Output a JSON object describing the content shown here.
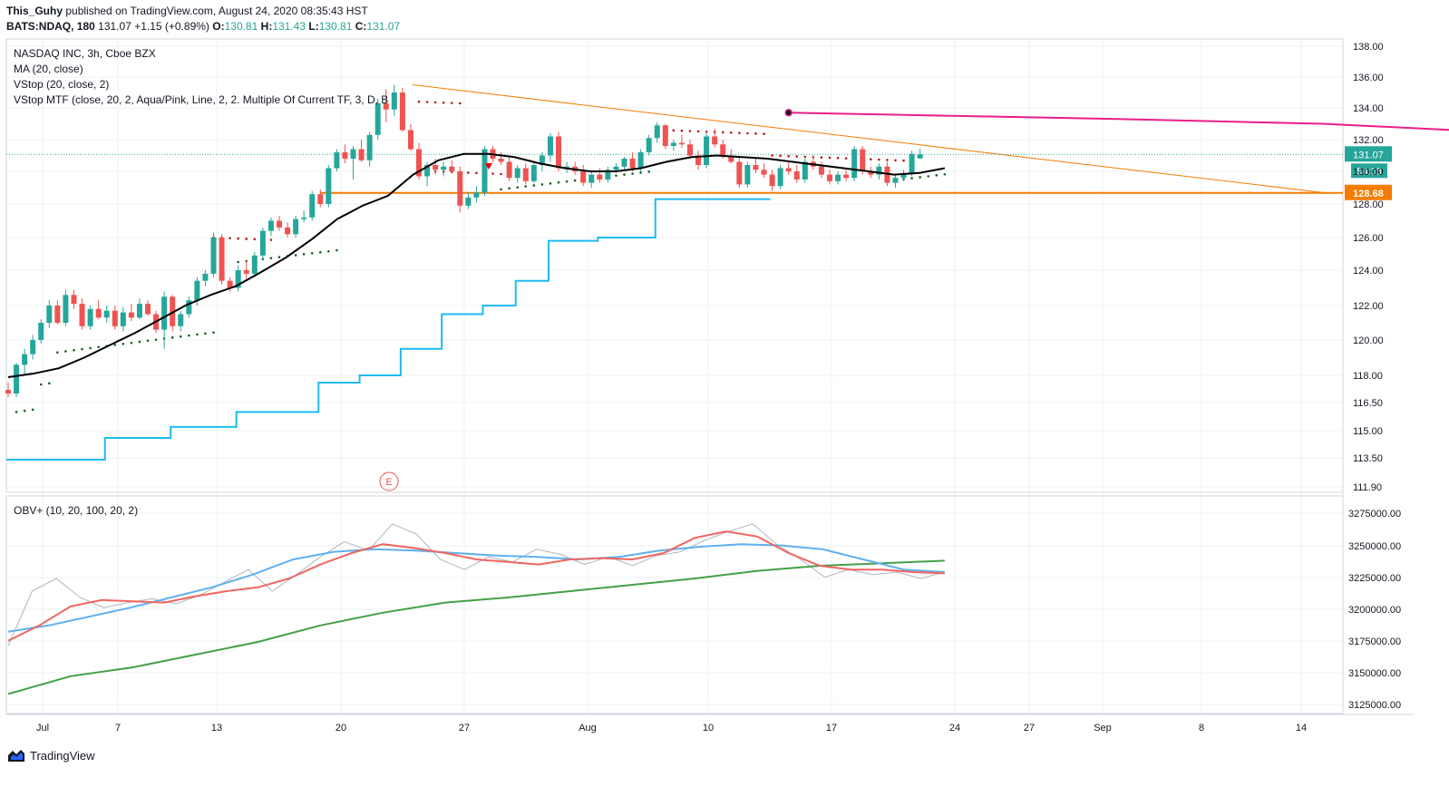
{
  "header": {
    "author": "This_Guhy",
    "published": "published on TradingView.com, August 24, 2020 08:35:43 HST",
    "symbol": "BATS:NDAQ, 180",
    "last": "131.07",
    "change": "+1.15 (+0.89%)",
    "o_label": "O:",
    "o": "130.81",
    "h_label": "H:",
    "h": "131.43",
    "l_label": "L:",
    "l": "130.81",
    "c_label": "C:",
    "c": "131.07"
  },
  "legend": {
    "title": "NASDAQ INC, 3h, Cboe BZX",
    "ma": "MA (20, close)",
    "vstop": "VStop (20, close, 2)",
    "vstop_mtf": "VStop MTF (close, 20, 2, Aqua/Pink, Line, 2, 2. Multiple Of Current TF, 3, D, B",
    "obv": "OBV+ (10, 20, 100, 20, 2)"
  },
  "footer": {
    "brand": "TradingView",
    "logo_icon": "tradingview-logo-icon"
  },
  "colors": {
    "up": "#26a69a",
    "down": "#ef5350",
    "ma": "#000000",
    "vstop_aqua": "#1ebbf0",
    "vstop_pink": "#e91e8c",
    "orange": "#f57c00",
    "obv": "#b2b5be",
    "obv_fast": "#f06560",
    "obv_mid": "#60b0f0",
    "obv_slow": "#43a047",
    "grid": "#eef0f3"
  },
  "chart_data": {
    "type": "candlestick",
    "price_ticks": [
      "138.00",
      "136.00",
      "134.00",
      "132.00",
      "130.00",
      "128.00",
      "126.00",
      "124.00",
      "122.00",
      "120.00",
      "118.00",
      "116.50",
      "115.00",
      "113.50",
      "111.90"
    ],
    "x_ticks": [
      "Jul",
      "7",
      "13",
      "20",
      "27",
      "Aug",
      "10",
      "17",
      "24",
      "27",
      "Sep",
      "8",
      "14"
    ],
    "obv_ticks": [
      "3275000.00",
      "3250000.00",
      "3225000.00",
      "3200000.00",
      "3175000.00",
      "3150000.00",
      "3125000.00"
    ],
    "price_badges": [
      {
        "value": "131.07",
        "sub": "54:18",
        "color": "#26a69a"
      },
      {
        "value": "128.68",
        "color": "#f57c00"
      }
    ],
    "horizontal_line": 128.68,
    "trend_line": {
      "from": [
        24,
        135.5
      ],
      "to": [
        170,
        128.68
      ]
    },
    "earnings_marker": "E",
    "candles": [
      [
        117.2,
        117.6,
        116.8,
        117.0
      ],
      [
        117.0,
        118.7,
        116.8,
        118.6
      ],
      [
        118.6,
        119.5,
        118.0,
        119.2
      ],
      [
        119.2,
        120.3,
        118.9,
        120.0
      ],
      [
        120.0,
        121.2,
        119.8,
        121.0
      ],
      [
        121.0,
        122.3,
        120.7,
        122.0
      ],
      [
        122.0,
        122.3,
        120.9,
        121.0
      ],
      [
        121.0,
        122.9,
        120.8,
        122.6
      ],
      [
        122.6,
        122.9,
        121.8,
        122.1
      ],
      [
        122.1,
        122.4,
        120.6,
        120.8
      ],
      [
        120.8,
        122.0,
        120.6,
        121.8
      ],
      [
        121.8,
        122.3,
        121.2,
        121.3
      ],
      [
        121.3,
        122.0,
        121.0,
        121.7
      ],
      [
        121.7,
        122.0,
        120.6,
        120.8
      ],
      [
        120.8,
        121.9,
        120.5,
        121.6
      ],
      [
        121.6,
        122.1,
        121.1,
        121.3
      ],
      [
        121.3,
        122.4,
        121.2,
        122.1
      ],
      [
        122.1,
        122.3,
        121.4,
        121.5
      ],
      [
        121.5,
        121.7,
        120.4,
        120.6
      ],
      [
        120.6,
        122.8,
        119.5,
        122.5
      ],
      [
        122.5,
        122.6,
        120.5,
        120.8
      ],
      [
        120.8,
        121.7,
        120.5,
        121.5
      ],
      [
        121.5,
        122.5,
        121.3,
        122.3
      ],
      [
        122.3,
        123.6,
        122.0,
        123.4
      ],
      [
        123.4,
        124.0,
        123.1,
        123.8
      ],
      [
        123.8,
        126.3,
        123.6,
        126.0
      ],
      [
        126.0,
        126.2,
        123.2,
        123.4
      ],
      [
        123.4,
        123.6,
        122.8,
        123.0
      ],
      [
        123.0,
        124.3,
        122.8,
        124.0
      ],
      [
        124.0,
        124.6,
        123.5,
        123.8
      ],
      [
        123.8,
        125.1,
        123.6,
        124.9
      ],
      [
        124.9,
        126.6,
        124.6,
        126.4
      ],
      [
        126.4,
        127.2,
        126.1,
        127.0
      ],
      [
        127.0,
        127.3,
        126.4,
        126.6
      ],
      [
        126.6,
        126.9,
        126.0,
        126.2
      ],
      [
        126.2,
        127.3,
        126.0,
        127.1
      ],
      [
        127.1,
        127.6,
        126.9,
        127.2
      ],
      [
        127.2,
        128.8,
        127.0,
        128.6
      ],
      [
        128.6,
        128.9,
        127.8,
        128.0
      ],
      [
        128.0,
        130.4,
        127.8,
        130.2
      ],
      [
        130.2,
        131.4,
        130.0,
        131.2
      ],
      [
        131.2,
        131.7,
        130.5,
        130.8
      ],
      [
        130.8,
        131.6,
        129.5,
        131.4
      ],
      [
        131.4,
        132.0,
        130.6,
        130.7
      ],
      [
        130.7,
        132.5,
        130.3,
        132.3
      ],
      [
        132.3,
        134.6,
        132.0,
        134.3
      ],
      [
        134.3,
        135.2,
        133.1,
        133.9
      ],
      [
        133.9,
        135.5,
        133.5,
        135.0
      ],
      [
        135.0,
        135.3,
        132.5,
        132.6
      ],
      [
        132.6,
        133.0,
        131.3,
        131.4
      ],
      [
        131.4,
        131.8,
        129.5,
        129.7
      ],
      [
        129.7,
        130.6,
        129.1,
        130.4
      ],
      [
        130.4,
        130.8,
        129.8,
        130.1
      ],
      [
        130.1,
        130.6,
        129.7,
        130.3
      ],
      [
        130.3,
        130.7,
        129.9,
        130.0
      ],
      [
        130.0,
        130.3,
        127.5,
        127.9
      ],
      [
        127.9,
        128.7,
        127.7,
        128.4
      ],
      [
        128.4,
        129.1,
        128.1,
        128.7
      ],
      [
        128.7,
        131.6,
        128.5,
        131.4
      ],
      [
        131.4,
        131.6,
        130.6,
        130.8
      ],
      [
        130.8,
        131.2,
        130.4,
        130.6
      ],
      [
        130.6,
        130.9,
        129.4,
        129.6
      ],
      [
        129.6,
        130.4,
        129.3,
        130.2
      ],
      [
        130.2,
        130.5,
        129.2,
        129.4
      ],
      [
        129.4,
        130.6,
        129.3,
        130.4
      ],
      [
        130.4,
        131.2,
        130.0,
        131.0
      ],
      [
        131.0,
        132.4,
        130.6,
        132.2
      ],
      [
        132.2,
        132.5,
        130.0,
        130.2
      ],
      [
        130.2,
        130.6,
        129.9,
        130.3
      ],
      [
        130.3,
        130.6,
        129.8,
        130.0
      ],
      [
        130.0,
        130.4,
        129.1,
        129.3
      ],
      [
        129.3,
        130.0,
        129.0,
        129.8
      ],
      [
        129.8,
        130.2,
        129.3,
        129.5
      ],
      [
        129.5,
        130.3,
        129.3,
        130.1
      ],
      [
        130.1,
        130.5,
        129.9,
        130.3
      ],
      [
        130.3,
        130.9,
        130.1,
        130.8
      ],
      [
        130.8,
        131.2,
        130.0,
        130.2
      ],
      [
        130.2,
        131.4,
        130.0,
        131.2
      ],
      [
        131.2,
        132.3,
        131.0,
        132.1
      ],
      [
        132.1,
        133.1,
        131.8,
        132.9
      ],
      [
        132.9,
        133.0,
        131.4,
        131.6
      ],
      [
        131.6,
        132.0,
        131.3,
        131.8
      ],
      [
        131.8,
        132.3,
        131.5,
        131.7
      ],
      [
        131.7,
        132.0,
        130.8,
        131.0
      ],
      [
        131.0,
        131.3,
        130.1,
        130.4
      ],
      [
        130.4,
        132.4,
        130.2,
        132.2
      ],
      [
        132.2,
        132.7,
        131.5,
        131.7
      ],
      [
        131.7,
        132.0,
        130.8,
        131.0
      ],
      [
        131.0,
        131.4,
        130.5,
        130.6
      ],
      [
        130.6,
        130.9,
        129.0,
        129.2
      ],
      [
        129.2,
        130.6,
        129.0,
        130.4
      ],
      [
        130.4,
        130.8,
        129.9,
        130.1
      ],
      [
        130.1,
        130.5,
        129.6,
        129.8
      ],
      [
        129.8,
        130.1,
        128.8,
        129.1
      ],
      [
        129.1,
        130.4,
        128.9,
        130.2
      ],
      [
        130.2,
        130.6,
        129.8,
        130.0
      ],
      [
        130.0,
        130.4,
        129.3,
        129.5
      ],
      [
        129.5,
        130.8,
        129.3,
        130.6
      ],
      [
        130.6,
        131.0,
        130.1,
        130.3
      ],
      [
        130.3,
        130.6,
        129.6,
        129.8
      ],
      [
        129.8,
        130.1,
        129.2,
        129.4
      ],
      [
        129.4,
        130.0,
        129.2,
        129.8
      ],
      [
        129.8,
        130.1,
        129.4,
        129.6
      ],
      [
        129.6,
        131.6,
        129.4,
        131.4
      ],
      [
        131.4,
        131.6,
        129.8,
        130.0
      ],
      [
        130.0,
        130.3,
        129.6,
        129.8
      ],
      [
        129.8,
        130.5,
        129.5,
        130.3
      ],
      [
        130.3,
        130.6,
        129.1,
        129.3
      ],
      [
        129.3,
        129.8,
        129.0,
        129.6
      ],
      [
        129.6,
        130.1,
        129.4,
        129.9
      ],
      [
        129.9,
        131.3,
        129.7,
        131.1
      ],
      [
        130.81,
        131.43,
        130.81,
        131.07
      ]
    ],
    "ma_line": [
      [
        0,
        117.9
      ],
      [
        5,
        118.1
      ],
      [
        10,
        118.4
      ],
      [
        15,
        119.0
      ],
      [
        20,
        119.7
      ],
      [
        25,
        120.4
      ],
      [
        30,
        121.2
      ],
      [
        35,
        122.0
      ],
      [
        40,
        122.6
      ],
      [
        45,
        123.1
      ],
      [
        50,
        123.9
      ],
      [
        55,
        124.8
      ],
      [
        60,
        125.9
      ],
      [
        65,
        127.1
      ],
      [
        70,
        127.9
      ],
      [
        75,
        128.5
      ],
      [
        80,
        129.8
      ],
      [
        85,
        130.7
      ],
      [
        90,
        131.1
      ],
      [
        95,
        131.1
      ],
      [
        100,
        130.9
      ],
      [
        105,
        130.5
      ],
      [
        110,
        130.2
      ],
      [
        115,
        130.0
      ],
      [
        120,
        130.0
      ],
      [
        125,
        130.2
      ],
      [
        130,
        130.6
      ],
      [
        135,
        130.9
      ],
      [
        140,
        131.0
      ],
      [
        145,
        130.9
      ],
      [
        150,
        130.8
      ],
      [
        155,
        130.6
      ],
      [
        160,
        130.4
      ],
      [
        165,
        130.2
      ],
      [
        170,
        130.0
      ],
      [
        175,
        129.8
      ],
      [
        180,
        129.9
      ],
      [
        185,
        130.2
      ]
    ],
    "vstop_aqua": [
      [
        0,
        113.4
      ],
      [
        12,
        113.4
      ],
      [
        12,
        114.6
      ],
      [
        20,
        114.6
      ],
      [
        20,
        115.2
      ],
      [
        28,
        115.2
      ],
      [
        28,
        116.0
      ],
      [
        38,
        116.0
      ],
      [
        38,
        117.6
      ],
      [
        43,
        117.6
      ],
      [
        43,
        118.0
      ],
      [
        48,
        118.0
      ],
      [
        48,
        119.5
      ],
      [
        53,
        119.5
      ],
      [
        53,
        121.5
      ],
      [
        58,
        121.5
      ],
      [
        58,
        122.0
      ],
      [
        62,
        122.0
      ],
      [
        62,
        123.4
      ],
      [
        66,
        123.4
      ],
      [
        66,
        125.8
      ],
      [
        72,
        125.8
      ],
      [
        72,
        126.0
      ],
      [
        79,
        126.0
      ],
      [
        79,
        128.3
      ],
      [
        93,
        128.3
      ]
    ],
    "vstop_pink": [
      [
        95,
        133.7
      ],
      [
        135,
        133.3
      ],
      [
        160,
        133.0
      ],
      [
        180,
        132.5
      ]
    ],
    "obv": [
      3172000,
      3215000,
      3225000,
      3210000,
      3202000,
      3206000,
      3209000,
      3205000,
      3212000,
      3222000,
      3232000,
      3215000,
      3228000,
      3242000,
      3254000,
      3247000,
      3268000,
      3260000,
      3240000,
      3232000,
      3242000,
      3238000,
      3248000,
      3244000,
      3236000,
      3242000,
      3235000,
      3243000,
      3246000,
      3255000,
      3262000,
      3268000,
      3252000,
      3240000,
      3226000,
      3232000,
      3228000,
      3230000,
      3225000,
      3230000
    ],
    "obv_fast": [
      3176000,
      3188000,
      3203000,
      3208000,
      3207000,
      3206000,
      3211000,
      3215000,
      3218000,
      3225000,
      3236000,
      3245000,
      3252000,
      3249000,
      3245000,
      3240000,
      3238000,
      3236000,
      3240000,
      3241000,
      3240000,
      3245000,
      3257000,
      3262000,
      3258000,
      3245000,
      3235000,
      3232000,
      3232000,
      3230000,
      3229000
    ],
    "obv_mid": [
      3183000,
      3188000,
      3195000,
      3202000,
      3210000,
      3218000,
      3228000,
      3240000,
      3246000,
      3248000,
      3247000,
      3245000,
      3243000,
      3242000,
      3240000,
      3242000,
      3247000,
      3250000,
      3252000,
      3251000,
      3248000,
      3240000,
      3232000,
      3230000
    ],
    "obv_slow": [
      3134000,
      3148000,
      3155000,
      3165000,
      3175000,
      3188000,
      3198000,
      3206000,
      3210000,
      3215000,
      3220000,
      3225000,
      3231000,
      3235000,
      3237000,
      3239000
    ]
  }
}
